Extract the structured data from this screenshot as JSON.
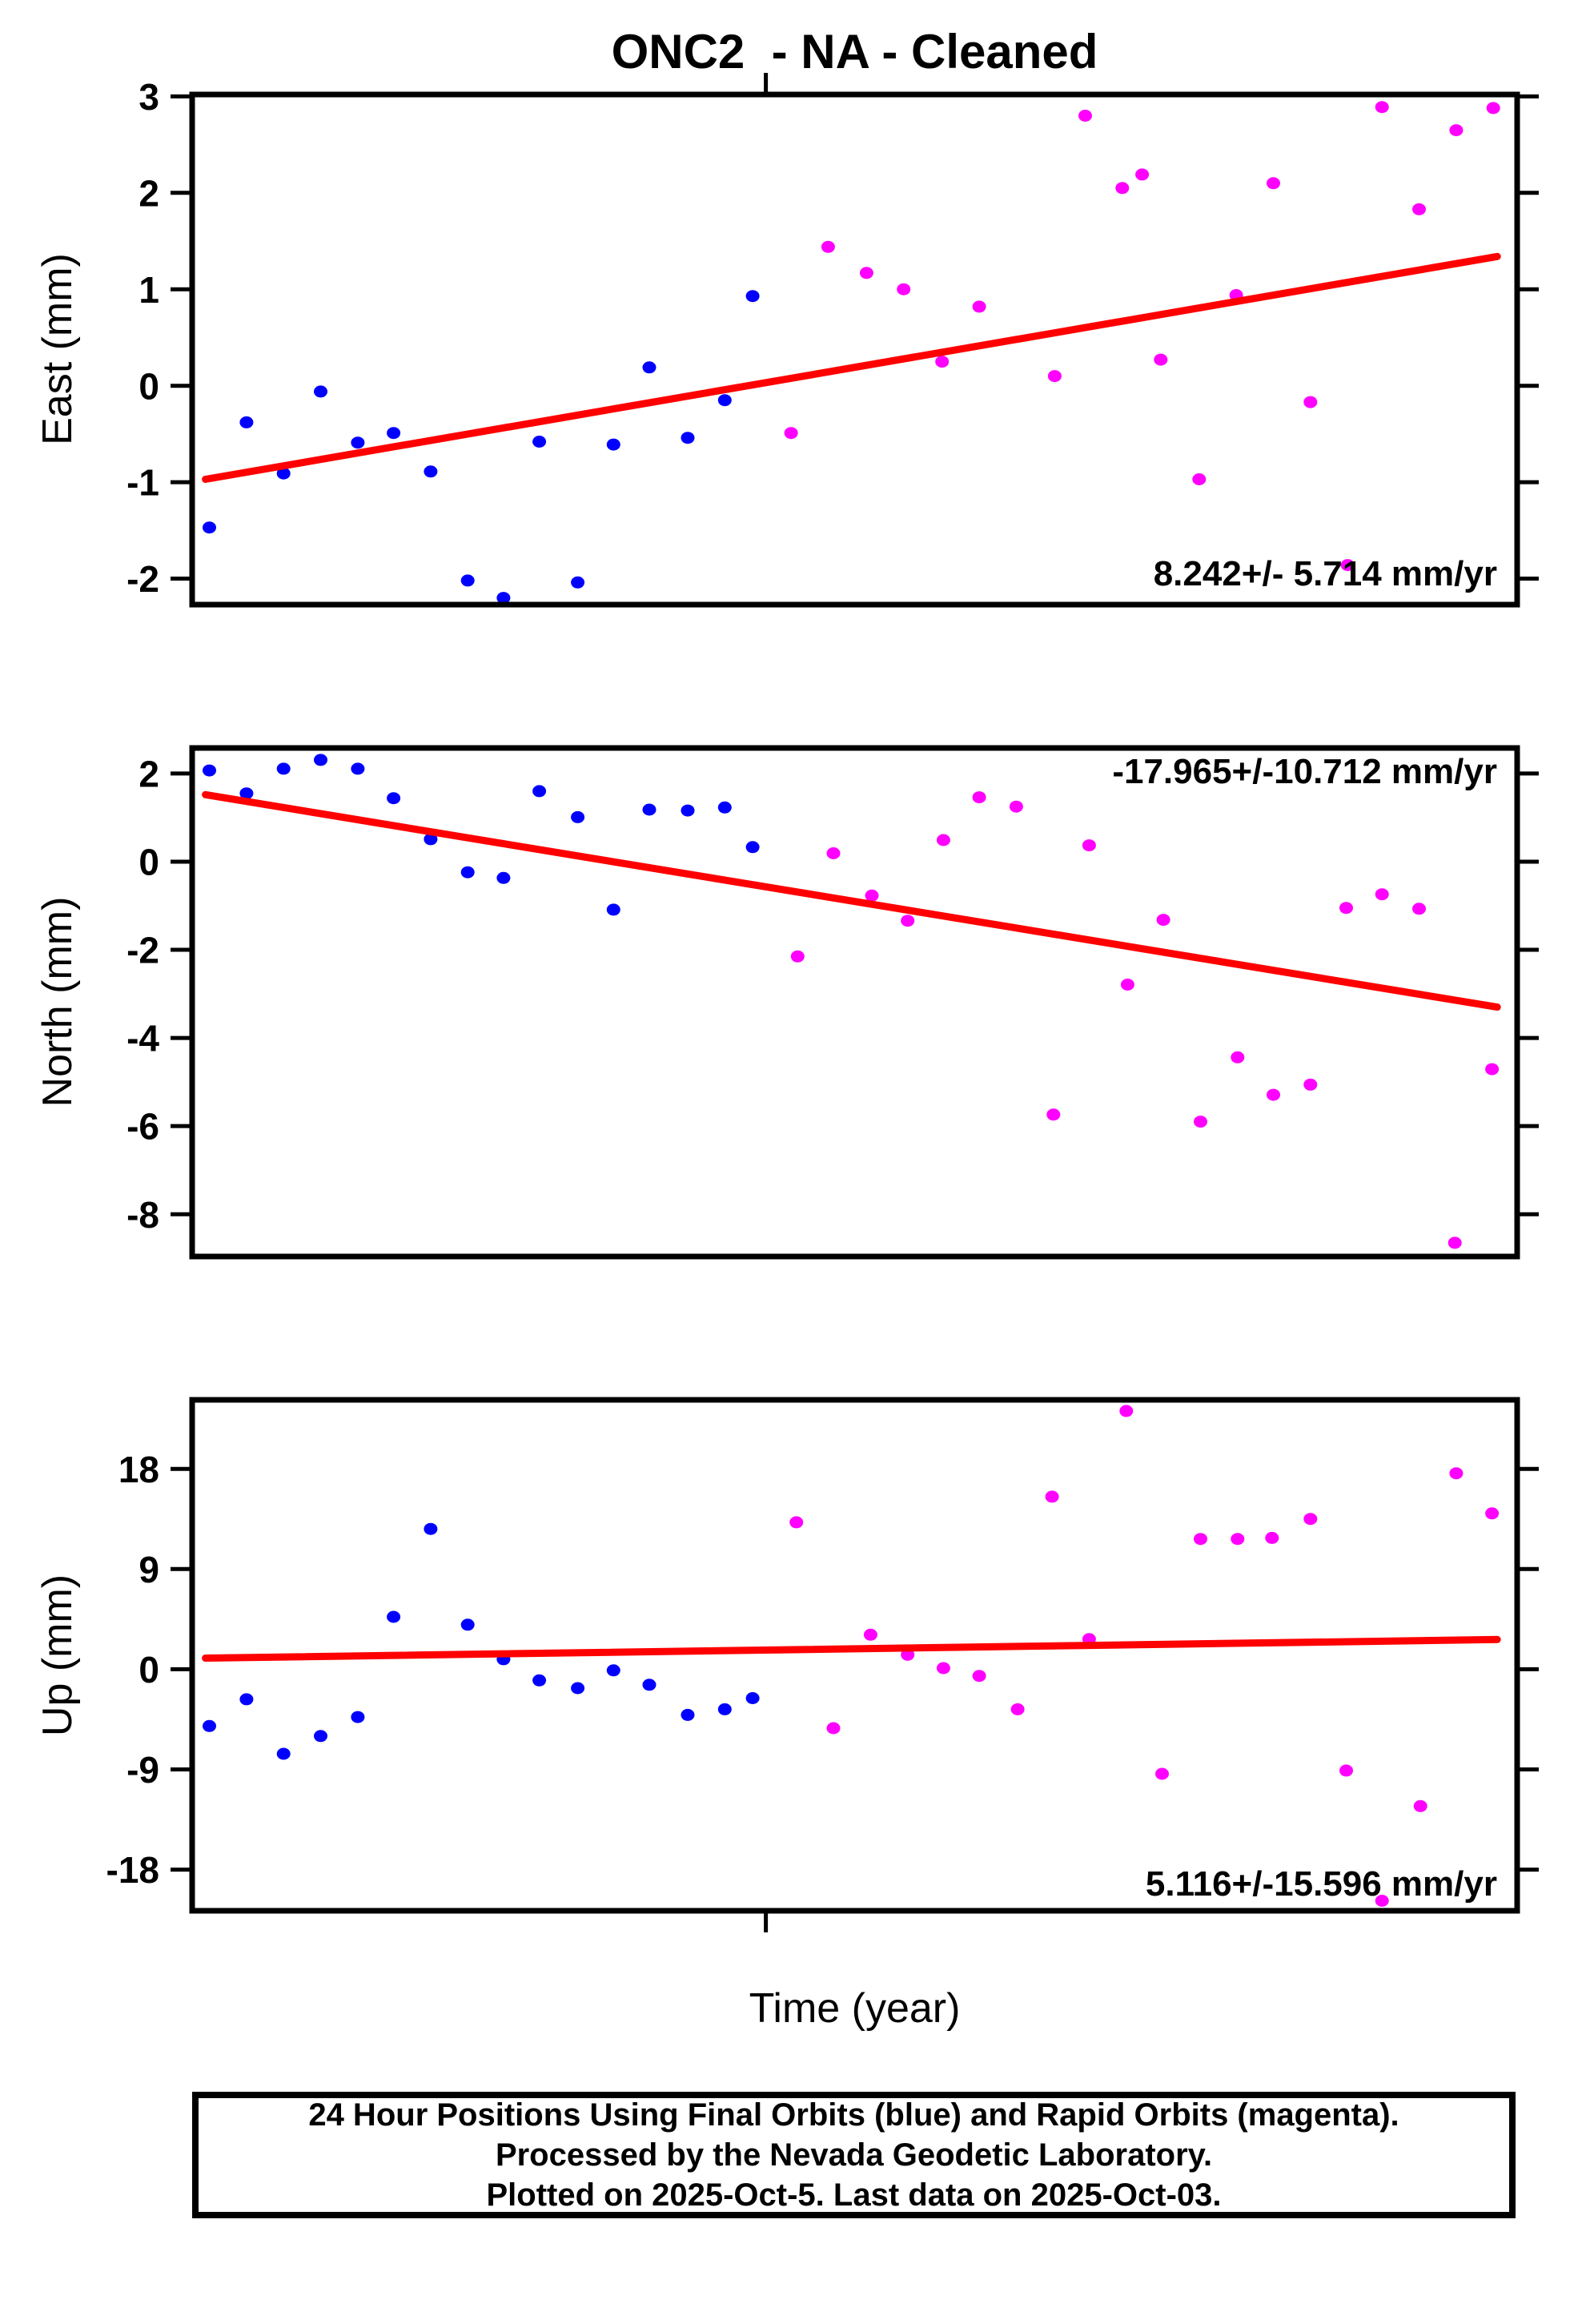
{
  "title": "ONC2  - NA - Cleaned",
  "x_axis": {
    "label": "Time (year)",
    "tick_positions_fraction": [
      0.433
    ],
    "tick_labels": [],
    "note": "x values are relative positions 0-1 across the panel; no x tick labels are shown in the plot"
  },
  "colors": {
    "final_orbits": "#0000ff",
    "rapid_orbits": "#ff00ff",
    "trend_line": "#ff0000",
    "axis": "#000000",
    "background": "#ffffff"
  },
  "footer": {
    "line1": "24 Hour Positions Using Final Orbits (blue) and Rapid Orbits (magenta).",
    "line2": "Processed by the Nevada Geodetic Laboratory.",
    "line3": "Plotted on 2025-Oct-5. Last data on 2025-Oct-03."
  },
  "chart_data": [
    {
      "type": "scatter",
      "component": "East",
      "ylabel": "East (mm)",
      "annotation": "8.242+/- 5.714 mm/yr",
      "annotation_position": "bottom-right",
      "slope_mm_per_yr": 8.242,
      "slope_uncertainty_mm_per_yr": 5.714,
      "ylim": [
        -2.27,
        3.02
      ],
      "yticks": [
        3,
        2,
        1,
        0,
        -1,
        -2
      ],
      "grid": false,
      "series": [
        {
          "name": "Final Orbits (blue)",
          "color": "#0000ff",
          "points": [
            [
              0.013,
              -1.47
            ],
            [
              0.041,
              -0.38
            ],
            [
              0.069,
              -0.91
            ],
            [
              0.097,
              -0.06
            ],
            [
              0.125,
              -0.59
            ],
            [
              0.152,
              -0.49
            ],
            [
              0.18,
              -0.89
            ],
            [
              0.208,
              -2.02
            ],
            [
              0.235,
              -2.2
            ],
            [
              0.262,
              -0.58
            ],
            [
              0.291,
              -2.04
            ],
            [
              0.318,
              -0.61
            ],
            [
              0.345,
              0.19
            ],
            [
              0.374,
              -0.54
            ],
            [
              0.402,
              -0.15
            ],
            [
              0.423,
              0.93
            ]
          ]
        },
        {
          "name": "Rapid Orbits (magenta)",
          "color": "#ff00ff",
          "points": [
            [
              0.452,
              -0.49
            ],
            [
              0.48,
              1.44
            ],
            [
              0.509,
              1.17
            ],
            [
              0.537,
              1.0
            ],
            [
              0.566,
              0.25
            ],
            [
              0.594,
              0.82
            ],
            [
              0.651,
              0.1
            ],
            [
              0.674,
              2.8
            ],
            [
              0.702,
              2.05
            ],
            [
              0.717,
              2.19
            ],
            [
              0.731,
              0.27
            ],
            [
              0.76,
              -0.97
            ],
            [
              0.788,
              0.94
            ],
            [
              0.816,
              2.1
            ],
            [
              0.844,
              -0.17
            ],
            [
              0.872,
              -1.86
            ],
            [
              0.898,
              2.89
            ],
            [
              0.926,
              1.83
            ],
            [
              0.954,
              2.65
            ],
            [
              0.982,
              2.88
            ]
          ]
        }
      ],
      "trend": {
        "x": [
          0.01,
          0.985
        ],
        "y": [
          -0.97,
          1.34
        ]
      }
    },
    {
      "type": "scatter",
      "component": "North",
      "ylabel": "North (mm)",
      "annotation": "-17.965+/-10.712 mm/yr",
      "annotation_position": "top-right",
      "slope_mm_per_yr": -17.965,
      "slope_uncertainty_mm_per_yr": 10.712,
      "ylim": [
        -8.96,
        2.58
      ],
      "yticks": [
        2,
        0,
        -2,
        -4,
        -6,
        -8
      ],
      "grid": false,
      "series": [
        {
          "name": "Final Orbits (blue)",
          "color": "#0000ff",
          "points": [
            [
              0.013,
              2.07
            ],
            [
              0.041,
              1.55
            ],
            [
              0.069,
              2.11
            ],
            [
              0.097,
              2.31
            ],
            [
              0.125,
              2.11
            ],
            [
              0.152,
              1.44
            ],
            [
              0.18,
              0.51
            ],
            [
              0.208,
              -0.24
            ],
            [
              0.235,
              -0.37
            ],
            [
              0.262,
              1.6
            ],
            [
              0.291,
              1.01
            ],
            [
              0.318,
              -1.09
            ],
            [
              0.345,
              1.18
            ],
            [
              0.374,
              1.16
            ],
            [
              0.402,
              1.23
            ],
            [
              0.423,
              0.33
            ]
          ]
        },
        {
          "name": "Rapid Orbits (magenta)",
          "color": "#ff00ff",
          "points": [
            [
              0.457,
              -2.15
            ],
            [
              0.484,
              0.19
            ],
            [
              0.513,
              -0.77
            ],
            [
              0.54,
              -1.34
            ],
            [
              0.567,
              0.49
            ],
            [
              0.594,
              1.46
            ],
            [
              0.622,
              1.25
            ],
            [
              0.65,
              -5.74
            ],
            [
              0.677,
              0.37
            ],
            [
              0.706,
              -2.79
            ],
            [
              0.733,
              -1.32
            ],
            [
              0.761,
              -5.9
            ],
            [
              0.789,
              -4.44
            ],
            [
              0.816,
              -5.29
            ],
            [
              0.844,
              -5.06
            ],
            [
              0.871,
              -1.05
            ],
            [
              0.898,
              -0.74
            ],
            [
              0.926,
              -1.07
            ],
            [
              0.953,
              -8.65
            ],
            [
              0.981,
              -4.71
            ]
          ]
        }
      ],
      "trend": {
        "x": [
          0.01,
          0.985
        ],
        "y": [
          1.52,
          -3.3
        ]
      }
    },
    {
      "type": "scatter",
      "component": "Up",
      "ylabel": "Up (mm)",
      "annotation": "5.116+/-15.596 mm/yr",
      "annotation_position": "bottom-right",
      "slope_mm_per_yr": 5.116,
      "slope_uncertainty_mm_per_yr": 15.596,
      "ylim": [
        -21.7,
        24.2
      ],
      "yticks": [
        18,
        9,
        0,
        -9,
        -18
      ],
      "grid": false,
      "series": [
        {
          "name": "Final Orbits (blue)",
          "color": "#0000ff",
          "points": [
            [
              0.013,
              -5.1
            ],
            [
              0.041,
              -2.7
            ],
            [
              0.069,
              -7.6
            ],
            [
              0.097,
              -6.0
            ],
            [
              0.125,
              -4.3
            ],
            [
              0.152,
              4.7
            ],
            [
              0.18,
              12.6
            ],
            [
              0.208,
              4.0
            ],
            [
              0.235,
              0.9
            ],
            [
              0.262,
              -1.0
            ],
            [
              0.291,
              -1.7
            ],
            [
              0.318,
              -0.1
            ],
            [
              0.345,
              -1.4
            ],
            [
              0.374,
              -4.1
            ],
            [
              0.402,
              -3.6
            ],
            [
              0.423,
              -2.6
            ]
          ]
        },
        {
          "name": "Rapid Orbits (magenta)",
          "color": "#ff00ff",
          "points": [
            [
              0.456,
              13.2
            ],
            [
              0.484,
              -5.3
            ],
            [
              0.512,
              3.1
            ],
            [
              0.54,
              1.3
            ],
            [
              0.567,
              0.1
            ],
            [
              0.594,
              -0.6
            ],
            [
              0.623,
              -3.6
            ],
            [
              0.649,
              15.5
            ],
            [
              0.677,
              2.7
            ],
            [
              0.705,
              23.2
            ],
            [
              0.732,
              -9.4
            ],
            [
              0.761,
              11.7
            ],
            [
              0.789,
              11.7
            ],
            [
              0.815,
              11.8
            ],
            [
              0.844,
              13.5
            ],
            [
              0.871,
              -9.1
            ],
            [
              0.898,
              -20.8
            ],
            [
              0.927,
              -12.3
            ],
            [
              0.954,
              17.6
            ],
            [
              0.981,
              14.0
            ]
          ]
        }
      ],
      "trend": {
        "x": [
          0.01,
          0.985
        ],
        "y": [
          1.0,
          2.67
        ]
      }
    }
  ]
}
